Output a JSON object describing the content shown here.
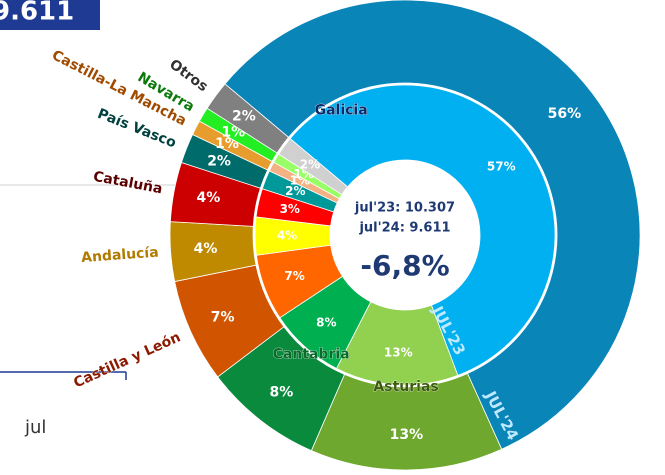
{
  "header_value": "9.611",
  "axis_label": "jul",
  "chart_data": {
    "type": "donut",
    "categories": [
      "Galicia",
      "Asturias",
      "Cantabria",
      "Castilla y León",
      "Andalucía",
      "Cataluña",
      "País Vasco",
      "Castilla-La Mancha",
      "Navarra",
      "Otros"
    ],
    "name_colors": [
      "#0b2a6b",
      "#3d5a10",
      "#0a6a2a",
      "#8b1a00",
      "#b07a00",
      "#5a0000",
      "#00403f",
      "#a04a00",
      "#0a7a0a",
      "#303030"
    ],
    "series": [
      {
        "name": "JUL'23",
        "ring": "inner",
        "colors": [
          "#00b0f0",
          "#92d050",
          "#00b050",
          "#ff6600",
          "#ffff00",
          "#ff0000",
          "#009999",
          "#f4b183",
          "#99ff66",
          "#d0d0d0"
        ],
        "values": [
          57,
          13,
          8,
          7,
          4,
          3,
          2,
          1,
          1,
          2
        ],
        "value_labels": [
          "57%",
          "13%",
          "8%",
          "7%",
          "4%",
          "3%",
          "2%",
          "1%",
          "1%",
          "2%"
        ]
      },
      {
        "name": "JUL'24",
        "ring": "outer",
        "colors": [
          "#0a85b8",
          "#6fa82e",
          "#0a8a3c",
          "#d15400",
          "#c08a00",
          "#cc0000",
          "#006b6b",
          "#e69d2e",
          "#22ee22",
          "#808080"
        ],
        "values": [
          56,
          13,
          8,
          7,
          4,
          4,
          2,
          1,
          1,
          2
        ],
        "value_labels": [
          "56%",
          "13%",
          "8%",
          "7%",
          "4%",
          "4%",
          "2%",
          "1%",
          "1%",
          "2%"
        ]
      }
    ],
    "center_lines": [
      "jul'23: 10.307",
      "jul'24: 9.611"
    ],
    "center_value": "-6,8%"
  }
}
